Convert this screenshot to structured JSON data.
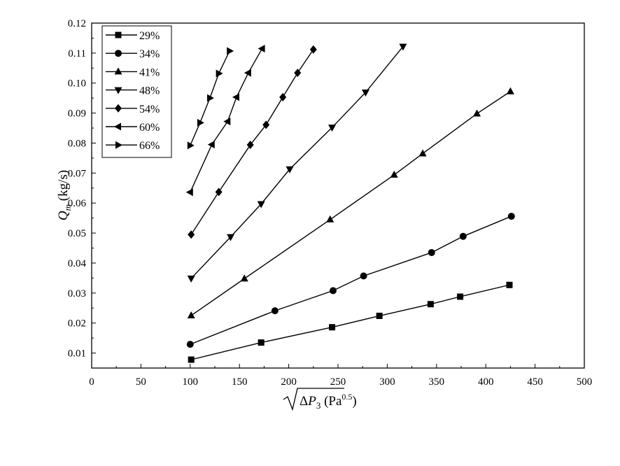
{
  "chart_data": {
    "type": "line",
    "xlabel": "√ΔP3 (Pa^0.5)",
    "ylabel": "Q_m (kg/s)",
    "xlim": [
      0,
      500
    ],
    "ylim": [
      0.005,
      0.12
    ],
    "grid": false,
    "legend_position": "top-left",
    "x_ticks": [
      "0",
      "50",
      "100",
      "150",
      "200",
      "250",
      "300",
      "350",
      "400",
      "450",
      "500"
    ],
    "y_ticks": [
      "0.01",
      "0.02",
      "0.03",
      "0.04",
      "0.05",
      "0.06",
      "0.07",
      "0.08",
      "0.09",
      "0.10",
      "0.11",
      "0.12"
    ],
    "series": [
      {
        "name": "29%",
        "marker": "square",
        "x": [
          101,
          172,
          244,
          292,
          344,
          374,
          424
        ],
        "y": [
          0.0078,
          0.0135,
          0.0186,
          0.0224,
          0.0263,
          0.0288,
          0.0327
        ]
      },
      {
        "name": "34%",
        "marker": "circle",
        "x": [
          100,
          186,
          245,
          276,
          345,
          377,
          426
        ],
        "y": [
          0.0129,
          0.0241,
          0.0308,
          0.0357,
          0.0435,
          0.0489,
          0.0556
        ]
      },
      {
        "name": "41%",
        "marker": "triangle-up",
        "x": [
          101,
          155,
          242,
          307,
          336,
          391,
          425
        ],
        "y": [
          0.0225,
          0.0348,
          0.0545,
          0.0694,
          0.0765,
          0.0898,
          0.0972
        ]
      },
      {
        "name": "48%",
        "marker": "triangle-down",
        "x": [
          101,
          141,
          172,
          201,
          244,
          278,
          316
        ],
        "y": [
          0.0349,
          0.0487,
          0.0597,
          0.0713,
          0.0852,
          0.0969,
          0.1122
        ]
      },
      {
        "name": "54%",
        "marker": "diamond",
        "x": [
          101,
          129,
          161,
          177,
          194,
          209,
          225
        ],
        "y": [
          0.0495,
          0.0637,
          0.0794,
          0.0861,
          0.0953,
          0.1034,
          0.1112
        ]
      },
      {
        "name": "60%",
        "marker": "triangle-left",
        "x": [
          100,
          122,
          138,
          147,
          159,
          173
        ],
        "y": [
          0.0636,
          0.0795,
          0.0872,
          0.0953,
          0.1034,
          0.1115
        ]
      },
      {
        "name": "66%",
        "marker": "triangle-right",
        "x": [
          100,
          110,
          120,
          129,
          140
        ],
        "y": [
          0.0792,
          0.0868,
          0.095,
          0.1032,
          0.1107
        ]
      }
    ]
  }
}
